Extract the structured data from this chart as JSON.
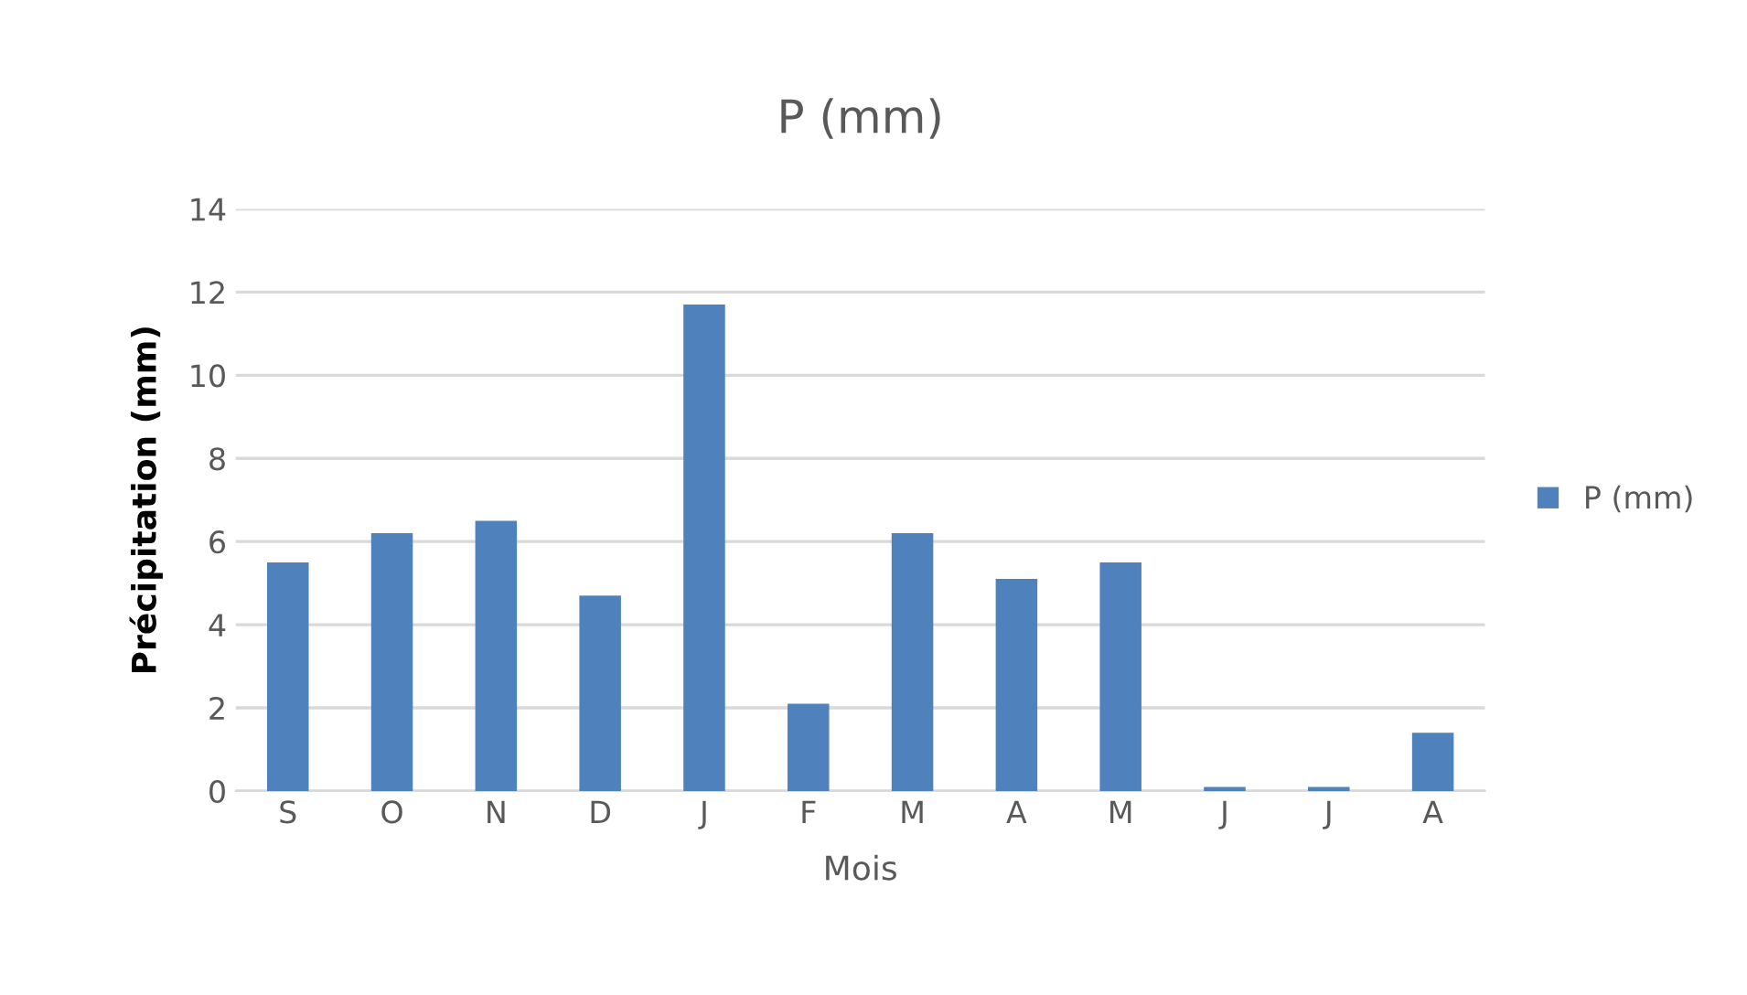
{
  "chart_data": {
    "type": "bar",
    "title": "P (mm)",
    "xlabel": "Mois",
    "ylabel": "Précipitation (mm)",
    "categories": [
      "S",
      "O",
      "N",
      "D",
      "J",
      "F",
      "M",
      "A",
      "M",
      "J",
      "J",
      "A"
    ],
    "series": [
      {
        "name": "P (mm)",
        "color": "#4f81bd",
        "values": [
          5.5,
          6.2,
          6.5,
          4.7,
          11.7,
          2.1,
          6.2,
          5.1,
          5.5,
          0.1,
          0.1,
          1.4
        ]
      }
    ],
    "ylim": [
      0,
      14
    ],
    "yticks": [
      0,
      2,
      4,
      6,
      8,
      10,
      12,
      14
    ],
    "grid": "y",
    "legend": "right"
  }
}
